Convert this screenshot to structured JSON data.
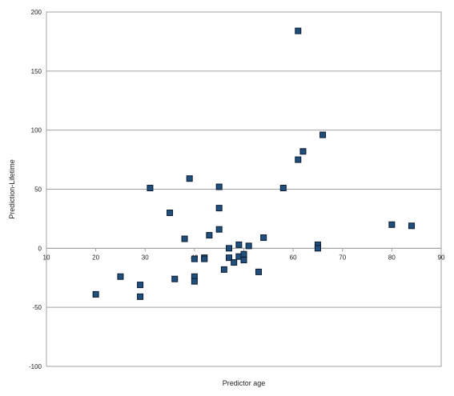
{
  "chart_data": {
    "type": "scatter",
    "title": "",
    "xlabel": "Predictor age",
    "ylabel": "Prediction-Lifetime",
    "xlim": [
      10,
      90
    ],
    "ylim": [
      -100,
      200
    ],
    "xticks": [
      "10",
      "20",
      "30",
      "40",
      "50",
      "60",
      "70",
      "80",
      "90"
    ],
    "yticks": [
      "200",
      "150",
      "100",
      "50",
      "0",
      "-50",
      "-100"
    ],
    "grid": "horizontal",
    "marker_color": "#1f4f7a",
    "points": [
      {
        "x": 20,
        "y": -39
      },
      {
        "x": 25,
        "y": -24
      },
      {
        "x": 29,
        "y": -31
      },
      {
        "x": 29,
        "y": -41
      },
      {
        "x": 31,
        "y": 51
      },
      {
        "x": 35,
        "y": 30
      },
      {
        "x": 36,
        "y": -26
      },
      {
        "x": 38,
        "y": 8
      },
      {
        "x": 39,
        "y": 59
      },
      {
        "x": 40,
        "y": -9
      },
      {
        "x": 40,
        "y": -24
      },
      {
        "x": 40,
        "y": -28
      },
      {
        "x": 42,
        "y": -8
      },
      {
        "x": 42,
        "y": -9
      },
      {
        "x": 43,
        "y": 11
      },
      {
        "x": 45,
        "y": 52
      },
      {
        "x": 45,
        "y": 34
      },
      {
        "x": 45,
        "y": 16
      },
      {
        "x": 46,
        "y": -18
      },
      {
        "x": 47,
        "y": 0
      },
      {
        "x": 47,
        "y": -8
      },
      {
        "x": 48,
        "y": -12
      },
      {
        "x": 49,
        "y": 3
      },
      {
        "x": 49,
        "y": -7
      },
      {
        "x": 50,
        "y": -5
      },
      {
        "x": 50,
        "y": -10
      },
      {
        "x": 51,
        "y": 2
      },
      {
        "x": 53,
        "y": -20
      },
      {
        "x": 54,
        "y": 9
      },
      {
        "x": 58,
        "y": 51
      },
      {
        "x": 61,
        "y": 184
      },
      {
        "x": 61,
        "y": 75
      },
      {
        "x": 62,
        "y": 82
      },
      {
        "x": 65,
        "y": 3
      },
      {
        "x": 65,
        "y": 0
      },
      {
        "x": 66,
        "y": 96
      },
      {
        "x": 80,
        "y": 20
      },
      {
        "x": 84,
        "y": 19
      }
    ]
  }
}
